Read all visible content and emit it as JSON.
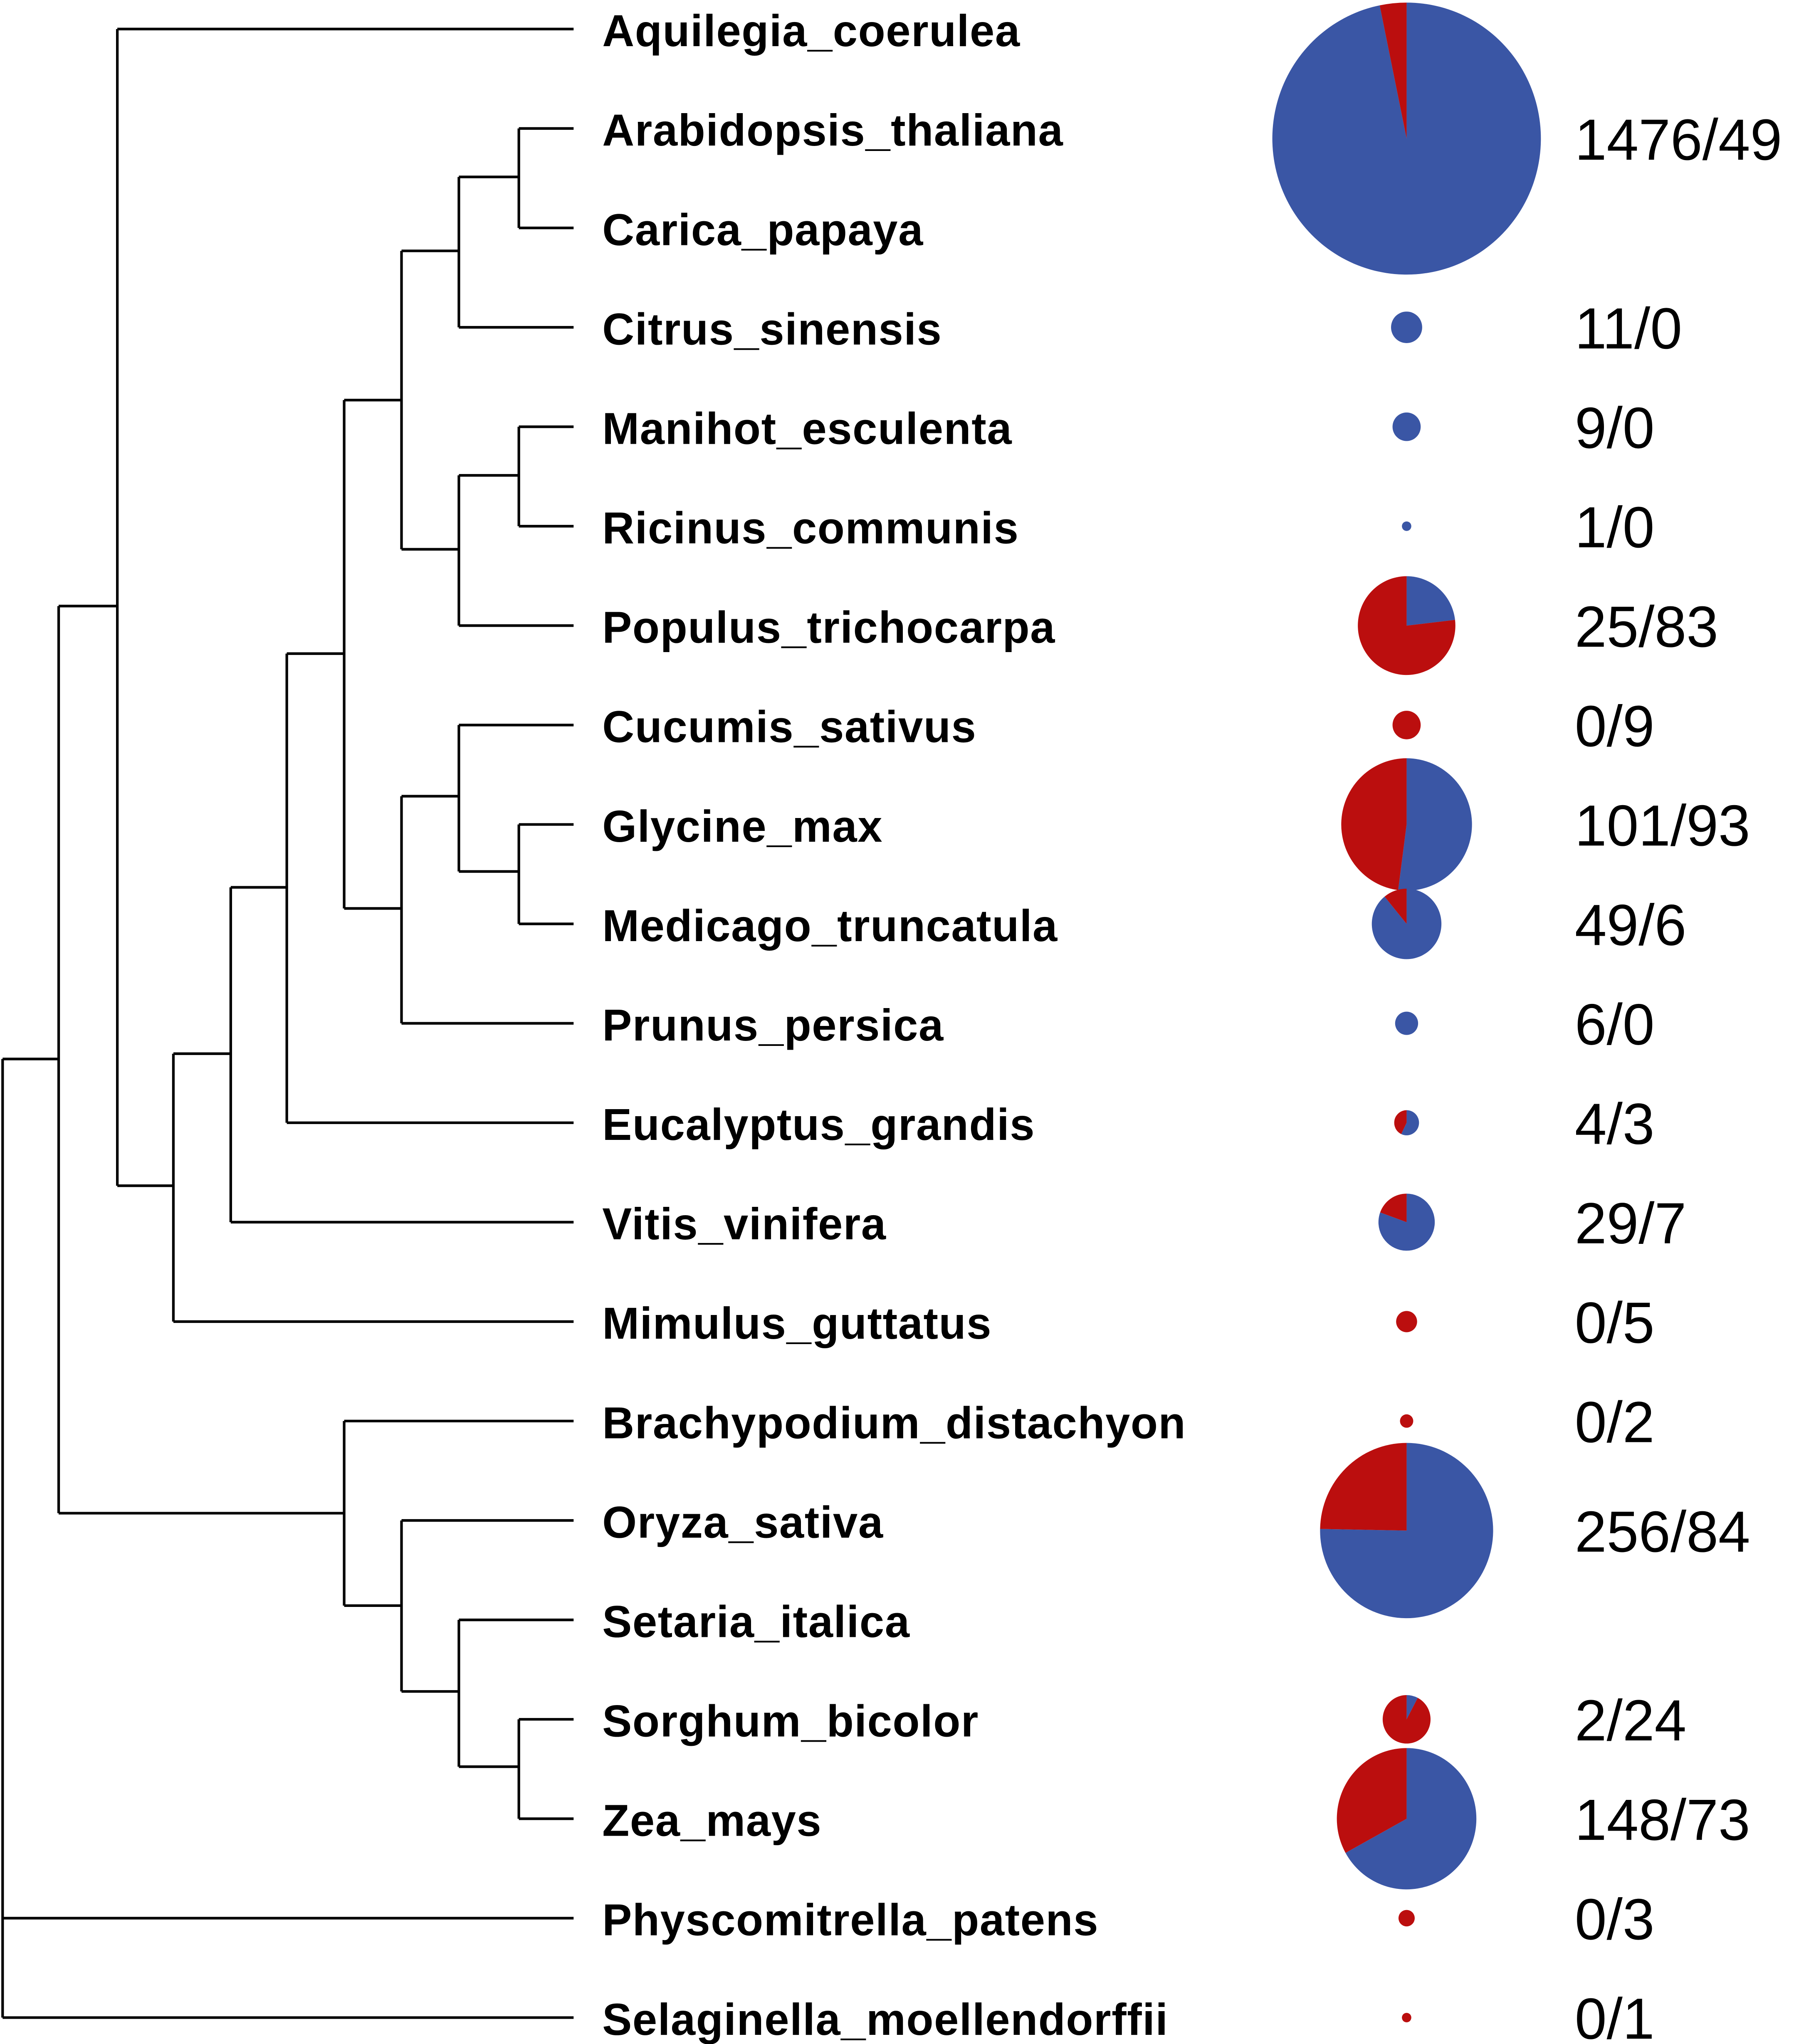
{
  "colors": {
    "blue": "#3A56A5",
    "red": "#BB0E0E"
  },
  "taxa": [
    "Aquilegia_coerulea",
    "Arabidopsis_thaliana",
    "Carica_papaya",
    "Citrus_sinensis",
    "Manihot_esculenta",
    "Ricinus_communis",
    "Populus_trichocarpa",
    "Cucumis_sativus",
    "Glycine_max",
    "Medicago_truncatula",
    "Prunus_persica",
    "Eucalyptus_grandis",
    "Vitis_vinifera",
    "Mimulus_guttatus",
    "Brachypodium_distachyon",
    "Oryza_sativa",
    "Setaria_italica",
    "Sorghum_bicolor",
    "Zea_mays",
    "Physcomitrella_patens",
    "Selaginella_moellendorffii"
  ],
  "tree_newick": "((Aquilegia_coerulea,((((((Arabidopsis_thaliana,Carica_papaya),Citrus_sinensis),((Manihot_esculenta,Ricinus_communis),Populus_trichocarpa)),((Cucumis_sativus,(Glycine_max,Medicago_truncatula)),Prunus_persica)),Eucalyptus_grandis),Vitis_vinifera),Mimulus_guttatus)),(Brachypodium_distachyon,(Oryza_sativa,(Setaria_italica,(Sorghum_bicolor,Zea_mays))))),Physcomitrella_patens,Selaginella_moellendorffii);",
  "pies": [
    {
      "taxa": [
        "Arabidopsis_thaliana",
        "Carica_papaya"
      ],
      "blue": 1476,
      "red": 49,
      "label": "1476/49"
    },
    {
      "taxa": [
        "Citrus_sinensis"
      ],
      "blue": 11,
      "red": 0,
      "label": "11/0"
    },
    {
      "taxa": [
        "Manihot_esculenta"
      ],
      "blue": 9,
      "red": 0,
      "label": "9/0"
    },
    {
      "taxa": [
        "Ricinus_communis"
      ],
      "blue": 1,
      "red": 0,
      "label": "1/0"
    },
    {
      "taxa": [
        "Populus_trichocarpa"
      ],
      "blue": 25,
      "red": 83,
      "label": "25/83"
    },
    {
      "taxa": [
        "Cucumis_sativus"
      ],
      "blue": 0,
      "red": 9,
      "label": "0/9"
    },
    {
      "taxa": [
        "Glycine_max"
      ],
      "blue": 101,
      "red": 93,
      "label": "101/93"
    },
    {
      "taxa": [
        "Medicago_truncatula"
      ],
      "blue": 49,
      "red": 6,
      "label": "49/6"
    },
    {
      "taxa": [
        "Prunus_persica"
      ],
      "blue": 6,
      "red": 0,
      "label": "6/0"
    },
    {
      "taxa": [
        "Eucalyptus_grandis"
      ],
      "blue": 4,
      "red": 3,
      "label": "4/3"
    },
    {
      "taxa": [
        "Vitis_vinifera"
      ],
      "blue": 29,
      "red": 7,
      "label": "29/7"
    },
    {
      "taxa": [
        "Mimulus_guttatus"
      ],
      "blue": 0,
      "red": 5,
      "label": "0/5"
    },
    {
      "taxa": [
        "Brachypodium_distachyon"
      ],
      "blue": 0,
      "red": 2,
      "label": "0/2"
    },
    {
      "taxa": [
        "Oryza_sativa",
        "Setaria_italica"
      ],
      "blue": 256,
      "red": 84,
      "label": "256/84"
    },
    {
      "taxa": [
        "Sorghum_bicolor"
      ],
      "blue": 2,
      "red": 24,
      "label": "2/24"
    },
    {
      "taxa": [
        "Zea_mays"
      ],
      "blue": 148,
      "red": 73,
      "label": "148/73"
    },
    {
      "taxa": [
        "Physcomitrella_patens"
      ],
      "blue": 0,
      "red": 3,
      "label": "0/3"
    },
    {
      "taxa": [
        "Selaginella_moellendorffii"
      ],
      "blue": 0,
      "red": 1,
      "label": "0/1"
    }
  ]
}
